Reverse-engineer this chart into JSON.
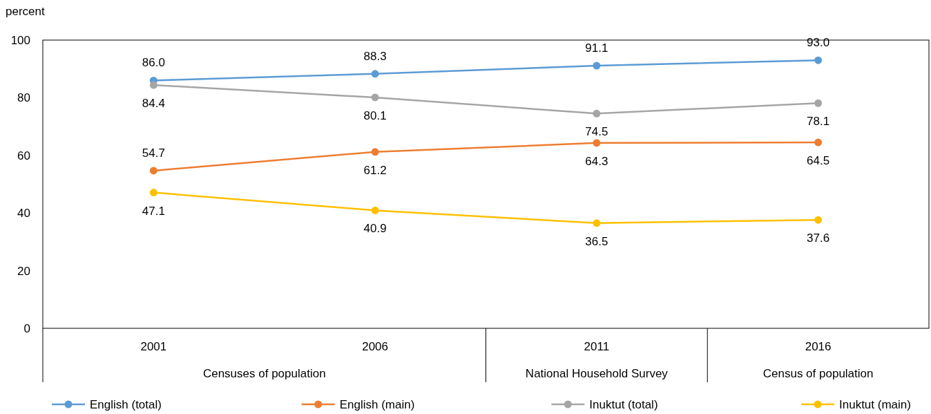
{
  "chart_data": {
    "type": "line",
    "ylabel": "percent",
    "categories": [
      "2001",
      "2006",
      "2011",
      "2016"
    ],
    "series": [
      {
        "name": "English (total)",
        "color": "#5b9bd5",
        "values": [
          86.0,
          88.3,
          91.1,
          93.0
        ],
        "value_labels": [
          "86.0",
          "88.3",
          "91.1",
          "93.0"
        ]
      },
      {
        "name": "English (main)",
        "color": "#ed7d31",
        "values": [
          54.7,
          61.2,
          64.3,
          64.5
        ],
        "value_labels": [
          "54.7",
          "61.2",
          "64.3",
          "64.5"
        ]
      },
      {
        "name": "Inuktut (total)",
        "color": "#a5a5a5",
        "values": [
          84.4,
          80.1,
          74.5,
          78.1
        ],
        "value_labels": [
          "84.4",
          "80.1",
          "74.5",
          "78.1"
        ]
      },
      {
        "name": "Inuktut (main)",
        "color": "#ffc000",
        "values": [
          47.1,
          40.9,
          36.5,
          37.6
        ],
        "value_labels": [
          "47.1",
          "40.9",
          "36.5",
          "37.6"
        ]
      }
    ],
    "ylim": [
      0,
      100
    ],
    "yticks": [
      0,
      20,
      40,
      60,
      80,
      100
    ],
    "marker": "circle",
    "line_style": "solid",
    "legend": "bottom",
    "annotations": [
      "Censuses of population",
      "National Household Survey",
      "Census of population"
    ]
  }
}
